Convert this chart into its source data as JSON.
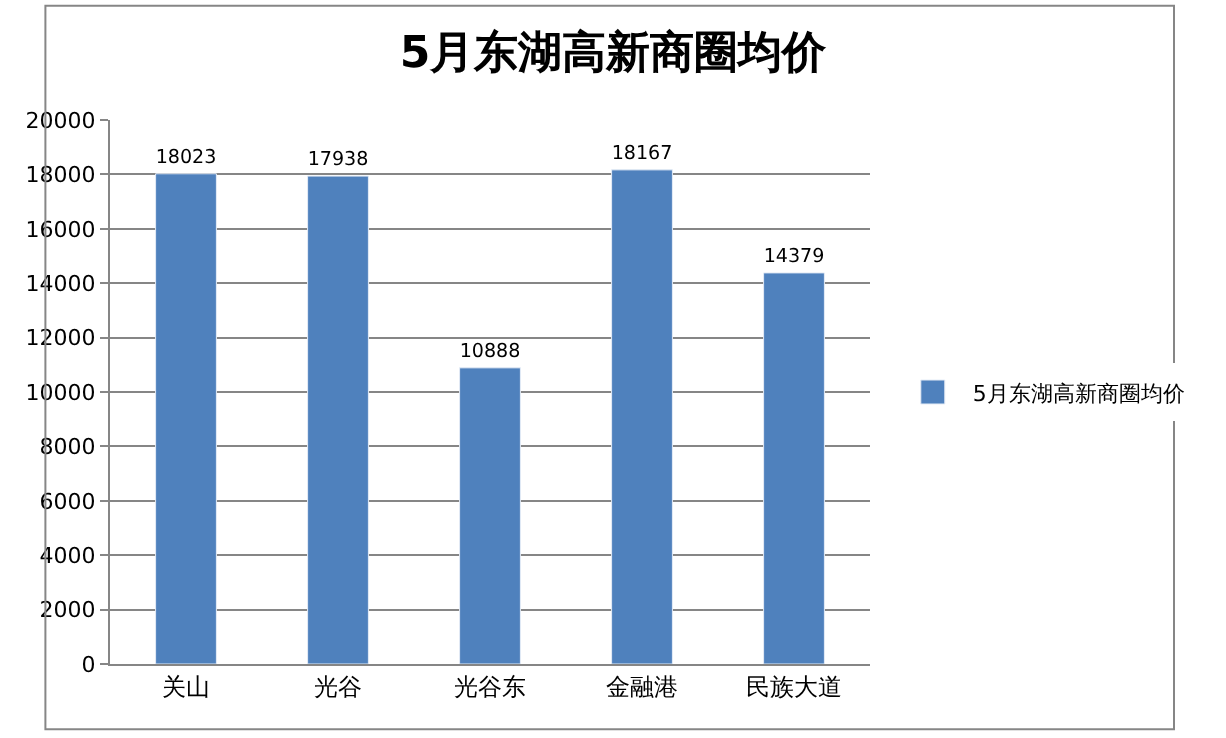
{
  "chart_data": {
    "type": "bar",
    "title": "5月东湖高新商圈均价",
    "categories": [
      "关山",
      "光谷",
      "光谷东",
      "金融港",
      "民族大道"
    ],
    "series": [
      {
        "name": "5月东湖高新商圈均价",
        "color": "#4f81bd",
        "values": [
          18023,
          17938,
          10888,
          18167,
          14379
        ]
      }
    ],
    "data_labels": true,
    "ylim": [
      0,
      20000
    ],
    "yticks": [
      0,
      2000,
      4000,
      6000,
      8000,
      10000,
      12000,
      14000,
      16000,
      18000,
      20000
    ],
    "grid": "y",
    "legend": "right"
  }
}
